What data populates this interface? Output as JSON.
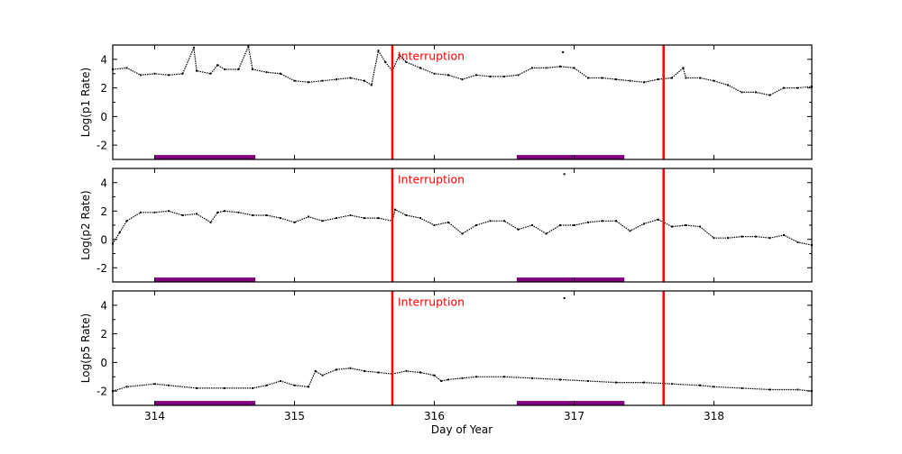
{
  "chart_data": {
    "type": "scatter",
    "xlabel": "Day of Year",
    "xlim": [
      313.7,
      318.7
    ],
    "xticks": [
      "314",
      "315",
      "316",
      "317",
      "318"
    ],
    "colors": {
      "points": "#000000",
      "interruption": "#ff0000",
      "bar": "#800080"
    },
    "interruptions": [
      315.7,
      317.64
    ],
    "interruption_label": "Interruption",
    "bars": [
      [
        314.0,
        314.72
      ],
      [
        316.59,
        317.36
      ]
    ],
    "bar_level": -2.85,
    "panels": [
      {
        "ylabel": "Log(p1 Rate)",
        "ylim": [
          -3,
          5
        ],
        "yticks": [
          "-2",
          "0",
          "2",
          "4"
        ],
        "x": [
          313.7,
          313.8,
          313.9,
          314.0,
          314.1,
          314.2,
          314.28,
          314.3,
          314.4,
          314.45,
          314.5,
          314.6,
          314.67,
          314.7,
          314.8,
          314.9,
          315.0,
          315.1,
          315.2,
          315.3,
          315.4,
          315.5,
          315.55,
          315.6,
          315.65,
          315.7,
          315.75,
          315.8,
          315.9,
          316.0,
          316.1,
          316.2,
          316.3,
          316.4,
          316.5,
          316.6,
          316.7,
          316.8,
          316.9,
          317.0,
          317.1,
          317.2,
          317.3,
          317.4,
          317.5,
          317.6,
          317.7,
          317.78,
          317.8,
          317.9,
          318.0,
          318.1,
          318.2,
          318.3,
          318.4,
          318.5,
          318.6,
          318.7
        ],
        "y": [
          3.3,
          3.4,
          2.9,
          3.0,
          2.9,
          3.0,
          4.8,
          3.2,
          3.0,
          3.6,
          3.3,
          3.3,
          4.9,
          3.3,
          3.1,
          3.0,
          2.5,
          2.4,
          2.5,
          2.6,
          2.7,
          2.5,
          2.2,
          4.6,
          3.8,
          3.2,
          4.3,
          3.8,
          3.4,
          3.0,
          2.9,
          2.6,
          2.9,
          2.8,
          2.8,
          2.9,
          3.4,
          3.4,
          3.5,
          3.4,
          2.7,
          2.7,
          2.6,
          2.5,
          2.4,
          2.6,
          2.7,
          3.4,
          2.7,
          2.7,
          2.5,
          2.2,
          1.7,
          1.7,
          1.5,
          2.0,
          2.0,
          2.1
        ],
        "outliers": [
          [
            316.92,
            4.5
          ]
        ]
      },
      {
        "ylabel": "Log(p2 Rate)",
        "ylim": [
          -3,
          5
        ],
        "yticks": [
          "-2",
          "0",
          "2",
          "4"
        ],
        "x": [
          313.7,
          313.75,
          313.8,
          313.9,
          314.0,
          314.1,
          314.2,
          314.3,
          314.4,
          314.45,
          314.5,
          314.6,
          314.7,
          314.8,
          314.9,
          315.0,
          315.1,
          315.2,
          315.3,
          315.4,
          315.5,
          315.6,
          315.7,
          315.72,
          315.8,
          315.9,
          316.0,
          316.1,
          316.2,
          316.3,
          316.4,
          316.5,
          316.6,
          316.7,
          316.8,
          316.9,
          317.0,
          317.1,
          317.2,
          317.3,
          317.4,
          317.5,
          317.6,
          317.7,
          317.8,
          317.9,
          318.0,
          318.1,
          318.2,
          318.3,
          318.4,
          318.5,
          318.6,
          318.7
        ],
        "y": [
          -0.3,
          0.5,
          1.3,
          1.9,
          1.9,
          2.0,
          1.7,
          1.8,
          1.2,
          1.9,
          2.0,
          1.9,
          1.7,
          1.7,
          1.5,
          1.2,
          1.6,
          1.3,
          1.5,
          1.7,
          1.5,
          1.5,
          1.3,
          2.1,
          1.7,
          1.5,
          1.0,
          1.2,
          0.4,
          1.0,
          1.3,
          1.3,
          0.7,
          1.0,
          0.4,
          1.0,
          1.0,
          1.2,
          1.3,
          1.3,
          0.6,
          1.1,
          1.4,
          0.9,
          1.0,
          0.9,
          0.1,
          0.1,
          0.2,
          0.2,
          0.1,
          0.3,
          -0.2,
          -0.4
        ],
        "outliers": [
          [
            316.93,
            4.6
          ]
        ]
      },
      {
        "ylabel": "Log(p5 Rate)",
        "ylim": [
          -3,
          5
        ],
        "yticks": [
          "-2",
          "0",
          "2",
          "4"
        ],
        "x": [
          313.7,
          313.8,
          314.0,
          314.1,
          314.3,
          314.5,
          314.7,
          314.8,
          314.9,
          315.0,
          315.1,
          315.15,
          315.2,
          315.3,
          315.4,
          315.5,
          315.6,
          315.7,
          315.8,
          315.9,
          316.0,
          316.05,
          316.1,
          316.2,
          316.3,
          316.5,
          316.7,
          316.9,
          317.1,
          317.3,
          317.5,
          317.7,
          317.9,
          318.0,
          318.2,
          318.4,
          318.6,
          318.7
        ],
        "y": [
          -2.0,
          -1.7,
          -1.5,
          -1.6,
          -1.8,
          -1.8,
          -1.8,
          -1.6,
          -1.3,
          -1.6,
          -1.7,
          -0.6,
          -0.9,
          -0.5,
          -0.4,
          -0.6,
          -0.7,
          -0.8,
          -0.6,
          -0.7,
          -0.9,
          -1.3,
          -1.2,
          -1.1,
          -1.0,
          -1.0,
          -1.1,
          -1.2,
          -1.3,
          -1.4,
          -1.4,
          -1.5,
          -1.6,
          -1.7,
          -1.8,
          -1.9,
          -1.9,
          -2.0
        ],
        "outliers": [
          [
            316.93,
            4.5
          ]
        ]
      }
    ]
  }
}
